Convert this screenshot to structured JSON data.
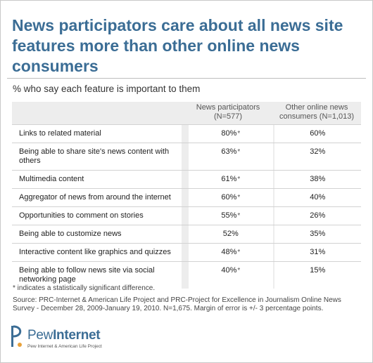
{
  "title": "News participators care about all news site features more than other online news consumers",
  "subtitle": "% who say each feature is important to them",
  "chart_data": {
    "type": "table",
    "columns": [
      "News participators (N=577)",
      "Other online news consumers (N=1,013)"
    ],
    "rows": [
      {
        "label": "Links to related material",
        "participators": "80%",
        "significant": true,
        "others": "60%"
      },
      {
        "label": "Being able to share site's news content with others",
        "participators": "63%",
        "significant": true,
        "others": "32%"
      },
      {
        "label": "Multimedia content",
        "participators": "61%",
        "significant": true,
        "others": "38%"
      },
      {
        "label": "Aggregator of news from around the internet",
        "participators": "60%",
        "significant": true,
        "others": "40%"
      },
      {
        "label": "Opportunities to comment on stories",
        "participators": "55%",
        "significant": true,
        "others": "26%"
      },
      {
        "label": "Being able to customize news",
        "participators": "52%",
        "significant": false,
        "others": "35%"
      },
      {
        "label": "Interactive content like graphics and quizzes",
        "participators": "48%",
        "significant": true,
        "others": "31%"
      },
      {
        "label": "Being able to follow news site via social networking page",
        "participators": "40%",
        "significant": true,
        "others": "15%"
      }
    ]
  },
  "star": "*",
  "footnote": "* indicates a statistically significant difference.",
  "source": "Source: PRC-Internet & American Life Project and PRC-Project for Excellence in Journalism Online News Survey - December 28, 2009-January 19, 2010. N=1,675. Margin of error is +/- 3 percentage points.",
  "logo": {
    "name_part1": "Pew",
    "name_part2": "Internet",
    "tagline": "Pew Internet & American Life Project"
  },
  "colors": {
    "title": "#3b6d95",
    "table_bg": "#ededed"
  }
}
